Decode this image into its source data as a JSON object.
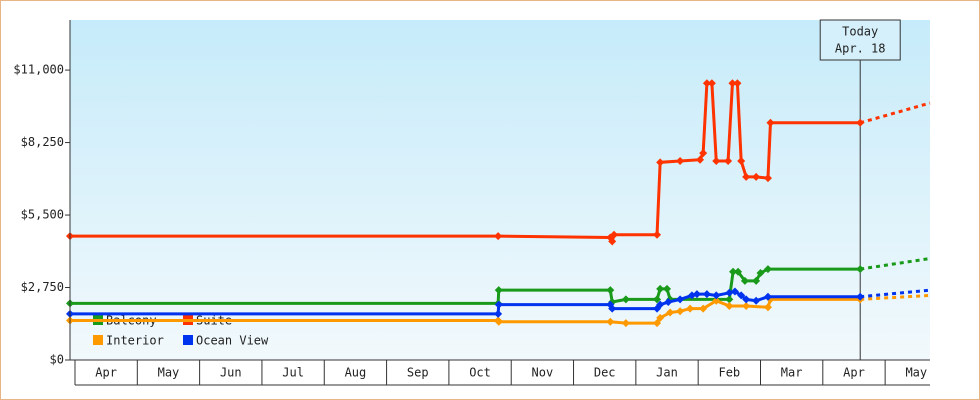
{
  "chart_data": {
    "type": "line",
    "xlim": [
      -0.08,
      13.72
    ],
    "ylim": [
      0,
      12900
    ],
    "yticks": [
      {
        "value": 0,
        "label": "$0"
      },
      {
        "value": 2750,
        "label": "$2,750"
      },
      {
        "value": 5500,
        "label": "$5,500"
      },
      {
        "value": 8250,
        "label": "$8,250"
      },
      {
        "value": 11000,
        "label": "$11,000"
      }
    ],
    "xticks": [
      {
        "value": 0.5,
        "label": "Apr"
      },
      {
        "value": 1.5,
        "label": "May"
      },
      {
        "value": 2.5,
        "label": "Jun"
      },
      {
        "value": 3.5,
        "label": "Jul"
      },
      {
        "value": 4.5,
        "label": "Aug"
      },
      {
        "value": 5.5,
        "label": "Sep"
      },
      {
        "value": 6.5,
        "label": "Oct"
      },
      {
        "value": 7.5,
        "label": "Nov"
      },
      {
        "value": 8.5,
        "label": "Dec"
      },
      {
        "value": 9.5,
        "label": "Jan"
      },
      {
        "value": 10.5,
        "label": "Feb"
      },
      {
        "value": 11.5,
        "label": "Mar"
      },
      {
        "value": 12.5,
        "label": "Apr"
      },
      {
        "value": 13.5,
        "label": "May"
      }
    ],
    "annotation": {
      "x": 12.6,
      "lines": [
        "Today",
        "Apr. 18"
      ]
    },
    "series": [
      {
        "name": "Balcony",
        "color": "#1a9a1a",
        "x": [
          -0.08,
          6.79,
          6.8,
          8.59,
          8.62,
          8.84,
          9.34,
          9.39,
          9.5,
          9.55,
          10.5,
          10.56,
          10.64,
          10.75,
          10.93,
          11.0,
          11.12,
          12.6
        ],
        "values": [
          2150,
          2150,
          2650,
          2650,
          2200,
          2300,
          2300,
          2700,
          2700,
          2300,
          2300,
          3350,
          3350,
          3000,
          3000,
          3300,
          3450,
          3450
        ],
        "projected_value": 3850
      },
      {
        "name": "Suite",
        "color": "#ff3300",
        "x": [
          -0.08,
          6.79,
          8.59,
          8.62,
          8.65,
          9.34,
          9.39,
          9.71,
          10.03,
          10.08,
          10.14,
          10.22,
          10.29,
          10.48,
          10.55,
          10.63,
          10.69,
          10.77,
          10.93,
          11.12,
          11.16,
          12.6
        ],
        "values": [
          4700,
          4700,
          4650,
          4500,
          4750,
          4750,
          7500,
          7550,
          7600,
          7850,
          10500,
          10500,
          7550,
          7550,
          10500,
          10500,
          7550,
          6950,
          6950,
          6900,
          9000,
          9000
        ],
        "projected_value": 9750
      },
      {
        "name": "Interior",
        "color": "#ff9900",
        "x": [
          -0.08,
          6.79,
          6.8,
          8.59,
          8.84,
          9.34,
          9.39,
          9.55,
          9.71,
          9.87,
          10.08,
          10.29,
          10.5,
          10.77,
          11.12,
          11.16,
          12.6
        ],
        "values": [
          1500,
          1500,
          1450,
          1450,
          1400,
          1400,
          1600,
          1800,
          1850,
          1950,
          1950,
          2250,
          2050,
          2050,
          2000,
          2300,
          2300
        ],
        "projected_value": 2450
      },
      {
        "name": "Ocean View",
        "color": "#0033ee",
        "x": [
          -0.08,
          6.79,
          6.8,
          8.59,
          8.62,
          9.34,
          9.39,
          9.52,
          9.71,
          9.9,
          9.98,
          10.14,
          10.29,
          10.5,
          10.59,
          10.69,
          10.77,
          10.93,
          11.12,
          12.6
        ],
        "values": [
          1750,
          1750,
          2100,
          2100,
          1950,
          1950,
          2100,
          2200,
          2300,
          2450,
          2500,
          2500,
          2450,
          2550,
          2600,
          2450,
          2300,
          2250,
          2400,
          2400
        ],
        "projected_value": 2650
      }
    ]
  }
}
